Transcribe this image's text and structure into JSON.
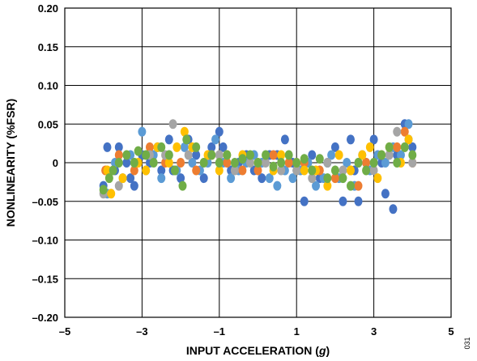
{
  "chart_data": {
    "type": "scatter",
    "title": "",
    "xlabel_prefix": "INPUT ACCELERATION (",
    "xlabel_unit": "g",
    "xlabel_suffix": ")",
    "ylabel": "NONLINEARITY (%FSR)",
    "xlim": [
      -5,
      5
    ],
    "ylim": [
      -0.2,
      0.2
    ],
    "x_ticks": [
      {
        "value": -5,
        "label": "–5"
      },
      {
        "value": -3,
        "label": "–3"
      },
      {
        "value": -1,
        "label": "–1"
      },
      {
        "value": 1,
        "label": "1"
      },
      {
        "value": 3,
        "label": "3"
      },
      {
        "value": 5,
        "label": "5"
      }
    ],
    "y_ticks": [
      {
        "value": 0.2,
        "label": "0.20"
      },
      {
        "value": 0.15,
        "label": "0.15"
      },
      {
        "value": 0.1,
        "label": "0.10"
      },
      {
        "value": 0.05,
        "label": "0.05"
      },
      {
        "value": 0,
        "label": "0"
      },
      {
        "value": -0.05,
        "label": "–0.05"
      },
      {
        "value": -0.1,
        "label": "–0.10"
      },
      {
        "value": -0.15,
        "label": "–0.15"
      },
      {
        "value": -0.2,
        "label": "–0.20"
      }
    ],
    "grid": true,
    "legend": "none",
    "figure_id": "031",
    "series": [
      {
        "color": "#4472c4",
        "points": [
          [
            -4.0,
            -0.03
          ],
          [
            -3.9,
            0.02
          ],
          [
            -3.7,
            -0.01
          ],
          [
            -3.6,
            0.02
          ],
          [
            -3.4,
            0.0
          ],
          [
            -3.3,
            -0.02
          ],
          [
            -3.2,
            -0.03
          ],
          [
            -3.0,
            0.01
          ],
          [
            -2.8,
            0.0
          ],
          [
            -2.6,
            0.02
          ],
          [
            -2.5,
            -0.01
          ],
          [
            -2.3,
            0.03
          ],
          [
            -2.2,
            -0.01
          ],
          [
            -2.0,
            -0.02
          ],
          [
            -1.8,
            0.03
          ],
          [
            -1.6,
            0.01
          ],
          [
            -1.4,
            -0.02
          ],
          [
            -1.2,
            0.02
          ],
          [
            -1.0,
            0.04
          ],
          [
            -0.9,
            0.02
          ],
          [
            -0.7,
            -0.01
          ],
          [
            -0.5,
            0.0
          ],
          [
            -0.3,
            0.01
          ],
          [
            -0.1,
            -0.01
          ],
          [
            0.1,
            -0.02
          ],
          [
            0.3,
            0.01
          ],
          [
            0.5,
            0.01
          ],
          [
            0.7,
            0.03
          ],
          [
            0.9,
            0.0
          ],
          [
            1.0,
            -0.01
          ],
          [
            1.2,
            -0.05
          ],
          [
            1.4,
            0.01
          ],
          [
            1.6,
            -0.02
          ],
          [
            1.8,
            0.0
          ],
          [
            2.0,
            0.02
          ],
          [
            2.2,
            -0.05
          ],
          [
            2.4,
            0.03
          ],
          [
            2.5,
            -0.01
          ],
          [
            2.6,
            -0.05
          ],
          [
            2.8,
            0.0
          ],
          [
            3.0,
            0.03
          ],
          [
            3.2,
            0.0
          ],
          [
            3.3,
            -0.04
          ],
          [
            3.5,
            -0.06
          ],
          [
            3.6,
            0.01
          ],
          [
            3.8,
            0.05
          ],
          [
            3.9,
            0.03
          ],
          [
            4.0,
            0.02
          ]
        ]
      },
      {
        "color": "#5b9bd5",
        "points": [
          [
            -3.9,
            -0.04
          ],
          [
            -3.7,
            0.0
          ],
          [
            -3.5,
            -0.02
          ],
          [
            -3.3,
            0.01
          ],
          [
            -3.0,
            0.04
          ],
          [
            -2.9,
            -0.01
          ],
          [
            -2.7,
            0.01
          ],
          [
            -2.5,
            -0.02
          ],
          [
            -2.3,
            0.01
          ],
          [
            -2.1,
            -0.01
          ],
          [
            -1.9,
            0.02
          ],
          [
            -1.7,
            0.0
          ],
          [
            -1.5,
            -0.01
          ],
          [
            -1.3,
            0.0
          ],
          [
            -1.1,
            0.03
          ],
          [
            -0.9,
            0.0
          ],
          [
            -0.7,
            -0.02
          ],
          [
            -0.5,
            -0.01
          ],
          [
            -0.3,
            0.0
          ],
          [
            -0.1,
            0.01
          ],
          [
            0.1,
            0.0
          ],
          [
            0.3,
            -0.02
          ],
          [
            0.5,
            -0.03
          ],
          [
            0.7,
            -0.01
          ],
          [
            0.9,
            -0.02
          ],
          [
            1.1,
            -0.01
          ],
          [
            1.3,
            0.0
          ],
          [
            1.5,
            -0.03
          ],
          [
            1.7,
            -0.02
          ],
          [
            1.9,
            0.01
          ],
          [
            2.1,
            -0.02
          ],
          [
            2.3,
            0.0
          ],
          [
            2.5,
            -0.03
          ],
          [
            2.7,
            0.01
          ],
          [
            2.9,
            -0.01
          ],
          [
            3.1,
            0.01
          ],
          [
            3.3,
            0.0
          ],
          [
            3.5,
            0.02
          ],
          [
            3.7,
            0.01
          ],
          [
            3.9,
            0.05
          ]
        ]
      },
      {
        "color": "#ed7d31",
        "points": [
          [
            -3.95,
            -0.01
          ],
          [
            -3.6,
            0.01
          ],
          [
            -3.2,
            -0.01
          ],
          [
            -2.8,
            0.02
          ],
          [
            -2.4,
            0.0
          ],
          [
            -2.0,
            0.0
          ],
          [
            -1.6,
            -0.01
          ],
          [
            -1.2,
            0.01
          ],
          [
            -0.8,
            0.0
          ],
          [
            -0.4,
            -0.01
          ],
          [
            0.0,
            -0.01
          ],
          [
            0.4,
            0.01
          ],
          [
            0.8,
            0.0
          ],
          [
            1.2,
            0.0
          ],
          [
            1.6,
            -0.01
          ],
          [
            2.0,
            -0.02
          ],
          [
            2.4,
            -0.01
          ],
          [
            2.6,
            -0.03
          ],
          [
            2.8,
            0.0
          ],
          [
            3.2,
            0.01
          ],
          [
            3.6,
            0.02
          ],
          [
            3.8,
            0.04
          ],
          [
            4.0,
            0.0
          ]
        ]
      },
      {
        "color": "#a5a5a5",
        "points": [
          [
            -4.0,
            -0.04
          ],
          [
            -3.6,
            -0.03
          ],
          [
            -3.2,
            0.0
          ],
          [
            -2.8,
            0.01
          ],
          [
            -2.4,
            0.01
          ],
          [
            -2.2,
            0.05
          ],
          [
            -1.8,
            0.01
          ],
          [
            -1.4,
            0.0
          ],
          [
            -1.0,
            0.01
          ],
          [
            -0.6,
            -0.01
          ],
          [
            -0.2,
            0.0
          ],
          [
            0.2,
            0.0
          ],
          [
            0.6,
            -0.01
          ],
          [
            1.0,
            -0.01
          ],
          [
            1.4,
            -0.02
          ],
          [
            1.8,
            0.0
          ],
          [
            2.2,
            -0.01
          ],
          [
            2.6,
            0.0
          ],
          [
            3.0,
            -0.01
          ],
          [
            3.4,
            0.01
          ],
          [
            3.6,
            0.04
          ],
          [
            3.8,
            0.02
          ],
          [
            4.0,
            0.0
          ]
        ]
      },
      {
        "color": "#ffc000",
        "points": [
          [
            -3.9,
            -0.01
          ],
          [
            -3.8,
            -0.04
          ],
          [
            -3.5,
            -0.02
          ],
          [
            -3.1,
            0.0
          ],
          [
            -2.9,
            -0.01
          ],
          [
            -2.6,
            0.02
          ],
          [
            -2.3,
            0.0
          ],
          [
            -2.1,
            0.02
          ],
          [
            -1.9,
            0.04
          ],
          [
            -1.7,
            0.02
          ],
          [
            -1.3,
            0.01
          ],
          [
            -1.0,
            -0.01
          ],
          [
            -0.8,
            0.01
          ],
          [
            -0.4,
            0.01
          ],
          [
            0.0,
            0.0
          ],
          [
            0.4,
            -0.01
          ],
          [
            0.6,
            0.01
          ],
          [
            1.0,
            0.0
          ],
          [
            1.2,
            -0.01
          ],
          [
            1.5,
            -0.01
          ],
          [
            1.8,
            -0.03
          ],
          [
            2.1,
            0.01
          ],
          [
            2.4,
            -0.01
          ],
          [
            2.7,
            0.01
          ],
          [
            2.9,
            0.02
          ],
          [
            3.1,
            -0.02
          ],
          [
            3.4,
            0.02
          ],
          [
            3.7,
            0.0
          ],
          [
            3.9,
            0.03
          ]
        ]
      },
      {
        "color": "#70ad47",
        "points": [
          [
            -4.0,
            -0.035
          ],
          [
            -3.85,
            -0.02
          ],
          [
            -3.75,
            -0.01
          ],
          [
            -3.6,
            0.0
          ],
          [
            -3.4,
            0.01
          ],
          [
            -3.2,
            0.0
          ],
          [
            -3.1,
            0.015
          ],
          [
            -2.9,
            0.01
          ],
          [
            -2.7,
            0.0
          ],
          [
            -2.5,
            0.02
          ],
          [
            -2.3,
            0.01
          ],
          [
            -2.15,
            -0.01
          ],
          [
            -1.95,
            -0.03
          ],
          [
            -1.85,
            0.03
          ],
          [
            -1.6,
            0.02
          ],
          [
            -1.4,
            0.0
          ],
          [
            -1.2,
            0.01
          ],
          [
            -1.0,
            0.0
          ],
          [
            -0.8,
            0.01
          ],
          [
            -0.6,
            0.0
          ],
          [
            -0.4,
            0.005
          ],
          [
            -0.2,
            0.01
          ],
          [
            0.0,
            0.0
          ],
          [
            0.2,
            0.01
          ],
          [
            0.4,
            -0.005
          ],
          [
            0.6,
            0.0
          ],
          [
            0.8,
            0.01
          ],
          [
            1.0,
            0.0
          ],
          [
            1.2,
            0.005
          ],
          [
            1.4,
            -0.01
          ],
          [
            1.6,
            0.005
          ],
          [
            1.8,
            -0.02
          ],
          [
            2.0,
            -0.01
          ],
          [
            2.2,
            -0.02
          ],
          [
            2.4,
            -0.03
          ],
          [
            2.6,
            0.0
          ],
          [
            2.8,
            -0.01
          ],
          [
            3.0,
            0.0
          ],
          [
            3.2,
            0.01
          ],
          [
            3.4,
            0.02
          ],
          [
            3.6,
            0.0
          ],
          [
            3.8,
            0.02
          ],
          [
            4.0,
            0.01
          ]
        ]
      }
    ]
  }
}
